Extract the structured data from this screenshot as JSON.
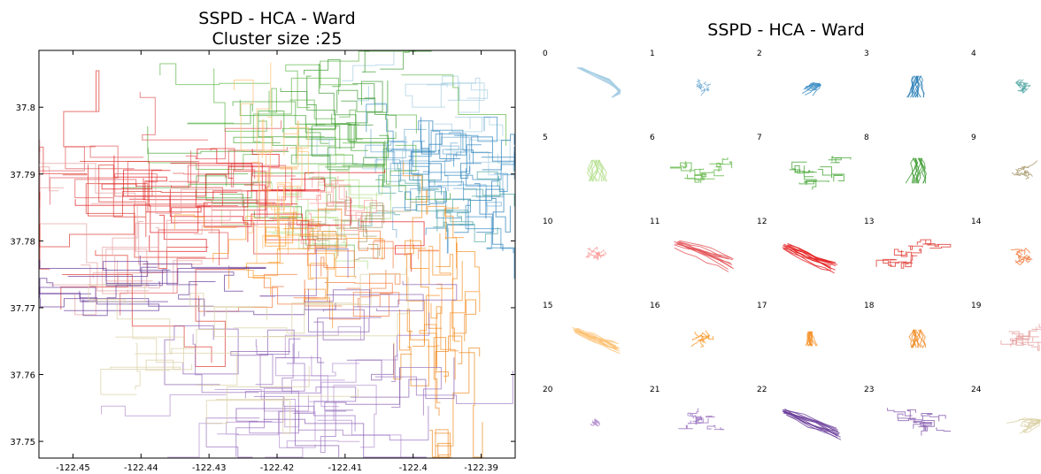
{
  "chart_data": [
    {
      "type": "line",
      "title": "SSPD - HCA - Ward",
      "subtitle": "Cluster size :25",
      "xlabel": "",
      "ylabel": "",
      "xlim": [
        -122.455,
        -122.385
      ],
      "ylim": [
        37.7475,
        37.8085
      ],
      "x_ticks": [
        -122.45,
        -122.44,
        -122.43,
        -122.42,
        -122.41,
        -122.4,
        -122.39
      ],
      "x_tick_labels": [
        "-122.45",
        "-122.44",
        "-122.43",
        "-122.42",
        "-122.41",
        "-122.4",
        "-122.39"
      ],
      "y_ticks": [
        37.75,
        37.76,
        37.77,
        37.78,
        37.79,
        37.8
      ],
      "y_tick_labels": [
        "37.75",
        "37.76",
        "37.77",
        "37.78",
        "37.79",
        "37.8"
      ],
      "grid": false,
      "series": [
        {
          "cluster": "0",
          "color": "#a6cee3",
          "center": [
            -122.402,
            37.798
          ],
          "spread": [
            0.01,
            0.006
          ]
        },
        {
          "cluster": "1",
          "color": "#76aed3",
          "center": [
            -122.398,
            37.792
          ],
          "spread": [
            0.006,
            0.005
          ]
        },
        {
          "cluster": "2",
          "color": "#3d8fc4",
          "center": [
            -122.396,
            37.789
          ],
          "spread": [
            0.008,
            0.007
          ]
        },
        {
          "cluster": "3",
          "color": "#2a7fb8",
          "center": [
            -122.393,
            37.787
          ],
          "spread": [
            0.005,
            0.007
          ]
        },
        {
          "cluster": "4",
          "color": "#4fa6a2",
          "center": [
            -122.397,
            37.785
          ],
          "spread": [
            0.006,
            0.004
          ]
        },
        {
          "cluster": "5",
          "color": "#b2df8a",
          "center": [
            -122.414,
            37.785
          ],
          "spread": [
            0.007,
            0.006
          ]
        },
        {
          "cluster": "6",
          "color": "#63b84a",
          "center": [
            -122.412,
            37.797
          ],
          "spread": [
            0.012,
            0.008
          ]
        },
        {
          "cluster": "7",
          "color": "#4aa83a",
          "center": [
            -122.418,
            37.792
          ],
          "spread": [
            0.014,
            0.006
          ]
        },
        {
          "cluster": "8",
          "color": "#3f9c33",
          "center": [
            -122.41,
            37.799
          ],
          "spread": [
            0.006,
            0.007
          ]
        },
        {
          "cluster": "9",
          "color": "#a89a6c",
          "center": [
            -122.409,
            37.782
          ],
          "spread": [
            0.005,
            0.004
          ]
        },
        {
          "cluster": "10",
          "color": "#fb9a99",
          "center": [
            -122.414,
            37.786
          ],
          "spread": [
            0.005,
            0.004
          ]
        },
        {
          "cluster": "11",
          "color": "#e3555a",
          "center": [
            -122.43,
            37.788
          ],
          "spread": [
            0.015,
            0.008
          ]
        },
        {
          "cluster": "12",
          "color": "#e31a1c",
          "center": [
            -122.425,
            37.787
          ],
          "spread": [
            0.018,
            0.006
          ]
        },
        {
          "cluster": "13",
          "color": "#de3a32",
          "center": [
            -122.44,
            37.784
          ],
          "spread": [
            0.016,
            0.012
          ]
        },
        {
          "cluster": "14",
          "color": "#f47c40",
          "center": [
            -122.412,
            37.777
          ],
          "spread": [
            0.01,
            0.006
          ]
        },
        {
          "cluster": "15",
          "color": "#fdbf6f",
          "center": [
            -122.421,
            37.79
          ],
          "spread": [
            0.004,
            0.01
          ]
        },
        {
          "cluster": "16",
          "color": "#f89a2c",
          "center": [
            -122.418,
            37.778
          ],
          "spread": [
            0.008,
            0.006
          ]
        },
        {
          "cluster": "17",
          "color": "#f5922a",
          "center": [
            -122.395,
            37.772
          ],
          "spread": [
            0.004,
            0.01
          ]
        },
        {
          "cluster": "18",
          "color": "#f08a20",
          "center": [
            -122.397,
            37.76
          ],
          "spread": [
            0.004,
            0.012
          ]
        },
        {
          "cluster": "19",
          "color": "#e6a0a0",
          "center": [
            -122.44,
            37.778
          ],
          "spread": [
            0.014,
            0.01
          ]
        },
        {
          "cluster": "20",
          "color": "#b48fcf",
          "center": [
            -122.418,
            37.757
          ],
          "spread": [
            0.012,
            0.008
          ]
        },
        {
          "cluster": "21",
          "color": "#9a72bf",
          "center": [
            -122.415,
            37.76
          ],
          "spread": [
            0.012,
            0.009
          ]
        },
        {
          "cluster": "22",
          "color": "#6a3d9a",
          "center": [
            -122.432,
            37.773
          ],
          "spread": [
            0.02,
            0.004
          ]
        },
        {
          "cluster": "23",
          "color": "#8a60b0",
          "center": [
            -122.418,
            37.762
          ],
          "spread": [
            0.014,
            0.01
          ]
        },
        {
          "cluster": "24",
          "color": "#d9cfa3",
          "center": [
            -122.433,
            37.764
          ],
          "spread": [
            0.018,
            0.008
          ]
        }
      ]
    },
    {
      "type": "line",
      "title": "SSPD - HCA - Ward",
      "grid": false,
      "columns": 5,
      "cells": [
        {
          "label": "0",
          "color": "#a6cee3",
          "shape": "hook",
          "size": 0.9
        },
        {
          "label": "1",
          "color": "#76aed3",
          "shape": "blob",
          "size": 0.4
        },
        {
          "label": "2",
          "color": "#3d8fc4",
          "shape": "fan",
          "size": 0.6
        },
        {
          "label": "3",
          "color": "#2a7fb8",
          "shape": "vertical",
          "size": 0.6
        },
        {
          "label": "4",
          "color": "#4fa6a2",
          "shape": "blob",
          "size": 0.5
        },
        {
          "label": "5",
          "color": "#b2df8a",
          "shape": "vertical",
          "size": 0.6
        },
        {
          "label": "6",
          "color": "#63b84a",
          "shape": "grid",
          "size": 0.9
        },
        {
          "label": "7",
          "color": "#4aa83a",
          "shape": "grid",
          "size": 1.0
        },
        {
          "label": "8",
          "color": "#3f9c33",
          "shape": "vertical",
          "size": 0.7
        },
        {
          "label": "9",
          "color": "#a89a6c",
          "shape": "blob",
          "size": 0.5
        },
        {
          "label": "10",
          "color": "#fb9a99",
          "shape": "blob",
          "size": 0.5
        },
        {
          "label": "11",
          "color": "#e3555a",
          "shape": "diagonal",
          "size": 0.9
        },
        {
          "label": "12",
          "color": "#e31a1c",
          "shape": "diagonal",
          "size": 0.8
        },
        {
          "label": "13",
          "color": "#de3a32",
          "shape": "grid",
          "size": 0.9
        },
        {
          "label": "14",
          "color": "#f47c40",
          "shape": "blob",
          "size": 0.6
        },
        {
          "label": "15",
          "color": "#fdbf6f",
          "shape": "diagonal",
          "size": 0.7
        },
        {
          "label": "16",
          "color": "#f89a2c",
          "shape": "blob",
          "size": 0.6
        },
        {
          "label": "17",
          "color": "#f5922a",
          "shape": "vertical",
          "size": 0.4
        },
        {
          "label": "18",
          "color": "#f08a20",
          "shape": "vertical",
          "size": 0.5
        },
        {
          "label": "19",
          "color": "#e6a0a0",
          "shape": "grid",
          "size": 0.8
        },
        {
          "label": "20",
          "color": "#b48fcf",
          "shape": "blob",
          "size": 0.3
        },
        {
          "label": "21",
          "color": "#9a72bf",
          "shape": "grid",
          "size": 0.6
        },
        {
          "label": "22",
          "color": "#6a3d9a",
          "shape": "diagonal",
          "size": 0.9
        },
        {
          "label": "23",
          "color": "#8a60b0",
          "shape": "grid",
          "size": 0.8
        },
        {
          "label": "24",
          "color": "#d9cfa3",
          "shape": "fan",
          "size": 0.9
        }
      ]
    }
  ]
}
